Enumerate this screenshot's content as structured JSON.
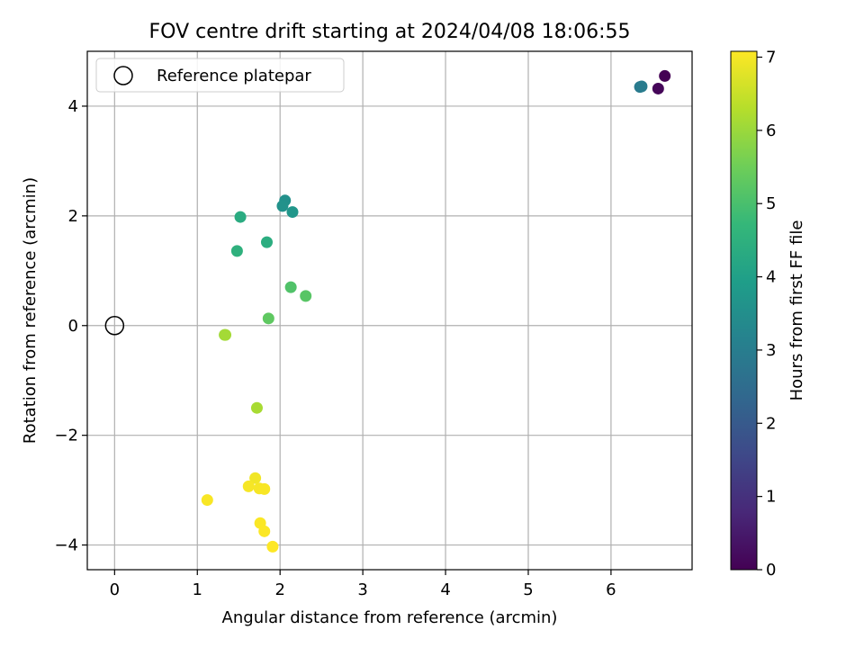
{
  "chart_data": {
    "type": "scatter",
    "title": "FOV centre drift starting at 2024/04/08 18:06:55",
    "xlabel": "Angular distance from reference (arcmin)",
    "ylabel": "Rotation from reference (arcmin)",
    "xlim": [
      -0.33,
      6.98
    ],
    "ylim": [
      -4.45,
      5.0
    ],
    "xticks": [
      0,
      1,
      2,
      3,
      4,
      5,
      6
    ],
    "yticks": [
      -4,
      -2,
      0,
      2,
      4
    ],
    "ytick_labels": [
      "−4",
      "−2",
      "0",
      "2",
      "4"
    ],
    "grid": true,
    "legend": {
      "position": "top-left",
      "label": "Reference platepar"
    },
    "reference_point": {
      "x": 0,
      "y": 0
    },
    "colorbar": {
      "label": "Hours from first FF file",
      "min": 0,
      "max": 7.08,
      "ticks": [
        0,
        1,
        2,
        3,
        4,
        5,
        6,
        7
      ],
      "colormap": [
        "#440154",
        "#482878",
        "#3e4989",
        "#31688e",
        "#26828e",
        "#1f9e89",
        "#35b779",
        "#6ece58",
        "#b5de2b",
        "#fde725"
      ]
    },
    "points": [
      {
        "x": 6.65,
        "y": 4.55,
        "t": 0.0
      },
      {
        "x": 6.57,
        "y": 4.32,
        "t": 0.1
      },
      {
        "x": 6.35,
        "y": 4.35,
        "t": 2.9
      },
      {
        "x": 6.37,
        "y": 4.36,
        "t": 2.95
      },
      {
        "x": 2.06,
        "y": 2.28,
        "t": 3.55
      },
      {
        "x": 2.03,
        "y": 2.18,
        "t": 3.6
      },
      {
        "x": 2.15,
        "y": 2.07,
        "t": 3.7
      },
      {
        "x": 1.52,
        "y": 1.98,
        "t": 4.35
      },
      {
        "x": 1.84,
        "y": 1.52,
        "t": 4.4
      },
      {
        "x": 1.48,
        "y": 1.36,
        "t": 4.5
      },
      {
        "x": 2.13,
        "y": 0.7,
        "t": 5.1
      },
      {
        "x": 2.31,
        "y": 0.54,
        "t": 5.2
      },
      {
        "x": 1.86,
        "y": 0.13,
        "t": 5.3
      },
      {
        "x": 1.33,
        "y": -0.17,
        "t": 6.05
      },
      {
        "x": 1.34,
        "y": -0.17,
        "t": 6.1
      },
      {
        "x": 1.72,
        "y": -1.5,
        "t": 6.15
      },
      {
        "x": 1.7,
        "y": -2.78,
        "t": 6.95
      },
      {
        "x": 1.62,
        "y": -2.93,
        "t": 7.0
      },
      {
        "x": 1.75,
        "y": -2.97,
        "t": 7.0
      },
      {
        "x": 1.81,
        "y": -2.98,
        "t": 7.02
      },
      {
        "x": 1.12,
        "y": -3.18,
        "t": 7.03
      },
      {
        "x": 1.76,
        "y": -3.6,
        "t": 7.05
      },
      {
        "x": 1.81,
        "y": -3.75,
        "t": 7.06
      },
      {
        "x": 1.91,
        "y": -4.03,
        "t": 7.08
      }
    ]
  }
}
